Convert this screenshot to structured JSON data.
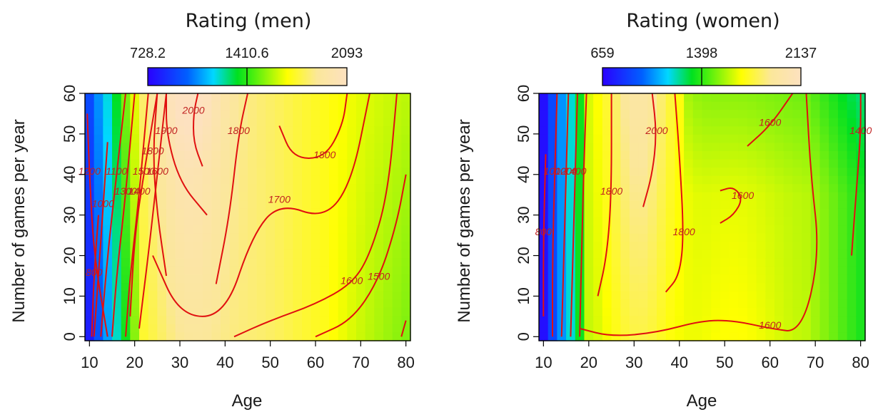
{
  "chart_data": [
    {
      "type": "heatmap",
      "title": "Rating (men)",
      "xlabel": "Age",
      "ylabel": "Number of games per year",
      "xlim": [
        9,
        81
      ],
      "ylim": [
        -1,
        60
      ],
      "xticks": [
        "10",
        "20",
        "30",
        "40",
        "50",
        "60",
        "70",
        "80"
      ],
      "yticks": [
        "0",
        "10",
        "20",
        "30",
        "40",
        "50",
        "60"
      ],
      "colorbar": {
        "labels": [
          "728.2",
          "1410.6",
          "2093"
        ],
        "min": 728.2,
        "mid": 1410.6,
        "max": 2093
      },
      "colors": {
        "low": "#2a00ff",
        "mid_low": "#00d8ff",
        "mid": "#00e020",
        "mid_high": "#ffff00",
        "high": "#fde1c0",
        "contour": "#e01010"
      },
      "contours": [
        {
          "label": "800",
          "points": [
            [
              10.5,
              0
            ],
            [
              11,
              15
            ],
            [
              12,
              30
            ]
          ]
        },
        {
          "label": "1000",
          "points": [
            [
              11,
              0
            ],
            [
              12,
              15
            ],
            [
              13,
              32
            ],
            [
              14,
              48
            ]
          ]
        },
        {
          "label": "1100",
          "points": [
            [
              12.5,
              0
            ],
            [
              14,
              20
            ],
            [
              16,
              40
            ],
            [
              18,
              60
            ]
          ]
        },
        {
          "label": "1200",
          "points": [
            [
              14,
              0
            ],
            [
              11,
              20
            ],
            [
              10,
              40
            ],
            [
              9.5,
              55
            ]
          ]
        },
        {
          "label": "1300",
          "points": [
            [
              15,
              0
            ],
            [
              16,
              15
            ],
            [
              18,
              35
            ],
            [
              20,
              60
            ]
          ]
        },
        {
          "label": "1400",
          "points": [
            [
              18,
              0
            ],
            [
              19,
              15
            ],
            [
              21,
              35
            ],
            [
              23,
              60
            ]
          ]
        },
        {
          "label": "1500",
          "points": [
            [
              19,
              5
            ],
            [
              20,
              25
            ],
            [
              22,
              40
            ],
            [
              25,
              60
            ]
          ]
        },
        {
          "label": "1600",
          "points": [
            [
              21,
              2
            ],
            [
              23,
              20
            ],
            [
              25,
              40
            ],
            [
              27,
              60
            ]
          ]
        },
        {
          "label": "1800",
          "points": [
            [
              27,
              15
            ],
            [
              25,
              30
            ],
            [
              24,
              45
            ],
            [
              25,
              60
            ]
          ]
        },
        {
          "label": "1900",
          "points": [
            [
              36,
              30
            ],
            [
              30,
              38
            ],
            [
              27,
              50
            ],
            [
              27,
              60
            ]
          ]
        },
        {
          "label": "2000",
          "points": [
            [
              35,
              42
            ],
            [
              33,
              48
            ],
            [
              33,
              55
            ],
            [
              34,
              60
            ]
          ]
        },
        {
          "label": "1700",
          "points": [
            [
              24,
              20
            ],
            [
              30,
              5
            ],
            [
              40,
              5
            ],
            [
              46,
              25
            ],
            [
              52,
              33
            ],
            [
              62,
              29
            ],
            [
              68,
              38
            ],
            [
              72,
              60
            ]
          ]
        },
        {
          "label": "1800",
          "points": [
            [
              38,
              13
            ],
            [
              41,
              30
            ],
            [
              43,
              50
            ],
            [
              45,
              60
            ]
          ]
        },
        {
          "label": "1800",
          "points": [
            [
              52,
              52
            ],
            [
              55,
              44
            ],
            [
              62,
              44
            ],
            [
              66,
              52
            ],
            [
              67,
              60
            ]
          ]
        },
        {
          "label": "1600",
          "points": [
            [
              42,
              0
            ],
            [
              50,
              4
            ],
            [
              60,
              8
            ],
            [
              68,
              13
            ],
            [
              72,
              20
            ],
            [
              76,
              35
            ],
            [
              78,
              60
            ]
          ]
        },
        {
          "label": "1500",
          "points": [
            [
              60,
              0
            ],
            [
              68,
              4
            ],
            [
              74,
              14
            ],
            [
              78,
              28
            ],
            [
              80,
              40
            ]
          ]
        },
        {
          "label": "",
          "points": [
            [
              79,
              0
            ],
            [
              80,
              4
            ]
          ]
        }
      ]
    },
    {
      "type": "heatmap",
      "title": "Rating (women)",
      "xlabel": "Age",
      "ylabel": "Number of games per year",
      "xlim": [
        9,
        81
      ],
      "ylim": [
        -1,
        60
      ],
      "xticks": [
        "10",
        "20",
        "30",
        "40",
        "50",
        "60",
        "70",
        "80"
      ],
      "yticks": [
        "0",
        "10",
        "20",
        "30",
        "40",
        "50",
        "60"
      ],
      "colorbar": {
        "labels": [
          "659",
          "1398",
          "2137"
        ],
        "min": 659,
        "mid": 1398,
        "max": 2137
      },
      "colors": {
        "low": "#2a00ff",
        "mid_low": "#00d8ff",
        "mid": "#00e020",
        "mid_high": "#ffff00",
        "high": "#fde1c0",
        "contour": "#e01010"
      },
      "contours": [
        {
          "label": "800",
          "points": [
            [
              10,
              5
            ],
            [
              10,
              25
            ],
            [
              10.5,
              45
            ]
          ]
        },
        {
          "label": "1000",
          "points": [
            [
              12,
              0
            ],
            [
              12,
              20
            ],
            [
              12.5,
              40
            ],
            [
              13,
              60
            ]
          ]
        },
        {
          "label": "1200",
          "points": [
            [
              14,
              0
            ],
            [
              14.5,
              20
            ],
            [
              15,
              40
            ],
            [
              15.5,
              60
            ]
          ]
        },
        {
          "label": "1400",
          "points": [
            [
              16,
              0
            ],
            [
              16.5,
              20
            ],
            [
              17,
              40
            ],
            [
              17.5,
              60
            ]
          ]
        },
        {
          "label": "",
          "points": [
            [
              18,
              0
            ],
            [
              18.5,
              25
            ],
            [
              19,
              45
            ],
            [
              19.5,
              60
            ]
          ]
        },
        {
          "label": "1800",
          "points": [
            [
              22,
              10
            ],
            [
              24,
              20
            ],
            [
              25,
              35
            ],
            [
              25,
              60
            ]
          ]
        },
        {
          "label": "1800",
          "points": [
            [
              37,
              11
            ],
            [
              40,
              15
            ],
            [
              41,
              25
            ],
            [
              40,
              45
            ],
            [
              39,
              60
            ]
          ]
        },
        {
          "label": "2000",
          "points": [
            [
              32,
              32
            ],
            [
              34,
              40
            ],
            [
              35,
              50
            ],
            [
              34,
              60
            ]
          ]
        },
        {
          "label": "1600",
          "points": [
            [
              18,
              2
            ],
            [
              25,
              0
            ],
            [
              35,
              1
            ],
            [
              45,
              4
            ],
            [
              52,
              4
            ],
            [
              60,
              2
            ],
            [
              67,
              1
            ],
            [
              71,
              20
            ],
            [
              69,
              40
            ],
            [
              68,
              60
            ]
          ]
        },
        {
          "label": "1600",
          "points": [
            [
              49,
              28
            ],
            [
              52,
              30
            ],
            [
              54,
              34
            ],
            [
              52,
              37
            ],
            [
              49,
              36
            ]
          ]
        },
        {
          "label": "1600",
          "points": [
            [
              55,
              47
            ],
            [
              60,
              52
            ],
            [
              65,
              60
            ]
          ]
        },
        {
          "label": "1400",
          "points": [
            [
              78,
              20
            ],
            [
              79,
              35
            ],
            [
              80,
              50
            ],
            [
              80,
              60
            ]
          ]
        }
      ]
    }
  ]
}
